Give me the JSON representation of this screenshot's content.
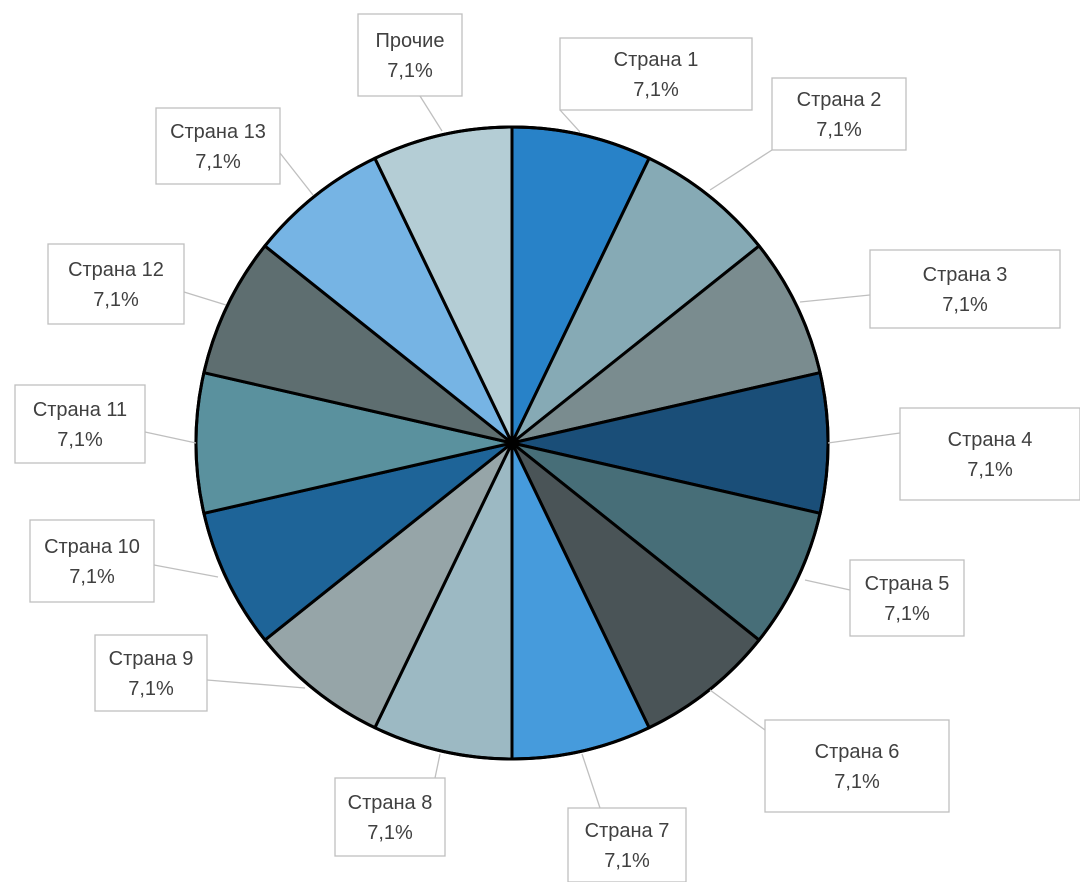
{
  "chart_data": {
    "type": "pie",
    "title": "",
    "start_angle_deg": 0,
    "direction": "clockwise",
    "slices": [
      {
        "label": "Страна 1",
        "value": 7.1,
        "value_label": "7,1%",
        "color": "#2882C8"
      },
      {
        "label": "Страна 2",
        "value": 7.1,
        "value_label": "7,1%",
        "color": "#86AAB5"
      },
      {
        "label": "Страна 3",
        "value": 7.1,
        "value_label": "7,1%",
        "color": "#7A8C8F"
      },
      {
        "label": "Страна 4",
        "value": 7.1,
        "value_label": "7,1%",
        "color": "#1A4E78"
      },
      {
        "label": "Страна 5",
        "value": 7.1,
        "value_label": "7,1%",
        "color": "#476E78"
      },
      {
        "label": "Страна 6",
        "value": 7.1,
        "value_label": "7,1%",
        "color": "#4A5457"
      },
      {
        "label": "Страна 7",
        "value": 7.1,
        "value_label": "7,1%",
        "color": "#469BDC"
      },
      {
        "label": "Страна 8",
        "value": 7.1,
        "value_label": "7,1%",
        "color": "#9CB9C3"
      },
      {
        "label": "Страна 9",
        "value": 7.1,
        "value_label": "7,1%",
        "color": "#96A5A8"
      },
      {
        "label": "Страна 10",
        "value": 7.1,
        "value_label": "7,1%",
        "color": "#1E6498"
      },
      {
        "label": "Страна 11",
        "value": 7.1,
        "value_label": "7,1%",
        "color": "#5A919E"
      },
      {
        "label": "Страна 12",
        "value": 7.1,
        "value_label": "7,1%",
        "color": "#5E6E70"
      },
      {
        "label": "Страна 13",
        "value": 7.1,
        "value_label": "7,1%",
        "color": "#76B4E4"
      },
      {
        "label": "Прочие",
        "value": 7.1,
        "value_label": "7,1%",
        "color": "#B4CDD5"
      }
    ]
  }
}
